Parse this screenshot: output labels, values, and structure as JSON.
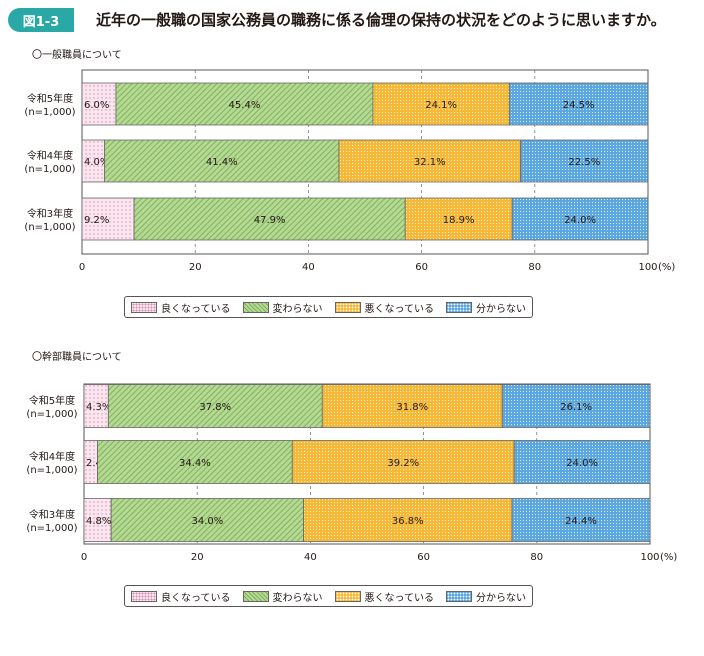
{
  "header": {
    "figure_number": "図1-3",
    "title": "近年の一般職の国家公務員の職務に係る倫理の保持の状況をどのように思いますか。"
  },
  "colors": {
    "badge": "#2aa8a6",
    "series": [
      "#f9e6ef",
      "#b5d994",
      "#f7b733",
      "#5aa6e0"
    ],
    "border": "#666666"
  },
  "legend": [
    "良くなっている",
    "変わらない",
    "悪くなっている",
    "分からない"
  ],
  "chart_data": [
    {
      "type": "bar",
      "orientation": "horizontal-stacked",
      "title": "〇一般職員について",
      "categories": [
        "令和5年度",
        "令和4年度",
        "令和3年度"
      ],
      "category_sublabel": "(n=1,000)",
      "series": [
        {
          "name": "良くなっている",
          "values": [
            6.0,
            4.0,
            9.2
          ]
        },
        {
          "name": "変わらない",
          "values": [
            45.4,
            41.4,
            47.9
          ]
        },
        {
          "name": "悪くなっている",
          "values": [
            24.1,
            32.1,
            18.9
          ]
        },
        {
          "name": "分からない",
          "values": [
            24.5,
            22.5,
            24.0
          ]
        }
      ],
      "xlim": [
        0,
        100
      ],
      "xticks": [
        0,
        20,
        40,
        60,
        80,
        100
      ],
      "unit": "(%)",
      "grid": true,
      "legend_position": "bottom"
    },
    {
      "type": "bar",
      "orientation": "horizontal-stacked",
      "title": "〇幹部職員について",
      "categories": [
        "令和5年度",
        "令和4年度",
        "令和3年度"
      ],
      "category_sublabel": "(n=1,000)",
      "series": [
        {
          "name": "良くなっている",
          "values": [
            4.3,
            2.4,
            4.8
          ]
        },
        {
          "name": "変わらない",
          "values": [
            37.8,
            34.4,
            34.0
          ]
        },
        {
          "name": "悪くなっている",
          "values": [
            31.8,
            39.2,
            36.8
          ]
        },
        {
          "name": "分からない",
          "values": [
            26.1,
            24.0,
            24.4
          ]
        }
      ],
      "xlim": [
        0,
        100
      ],
      "xticks": [
        0,
        20,
        40,
        60,
        80,
        100
      ],
      "unit": "(%)",
      "grid": true,
      "legend_position": "bottom"
    }
  ]
}
